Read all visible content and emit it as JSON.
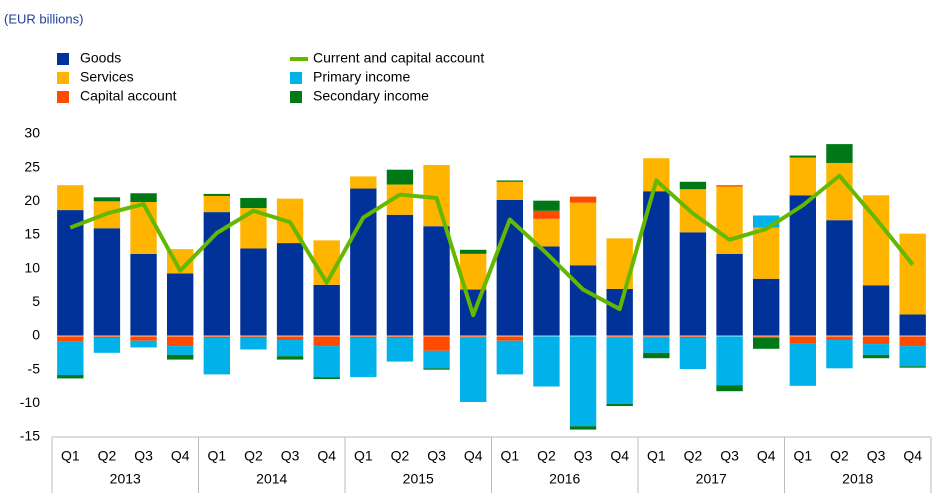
{
  "chart_data": {
    "type": "bar",
    "subtitle": "(EUR billions)",
    "categories": [
      "Q1",
      "Q2",
      "Q3",
      "Q4",
      "Q1",
      "Q2",
      "Q3",
      "Q4",
      "Q1",
      "Q2",
      "Q3",
      "Q4",
      "Q1",
      "Q2",
      "Q3",
      "Q4",
      "Q1",
      "Q2",
      "Q3",
      "Q4",
      "Q1",
      "Q2",
      "Q3",
      "Q4"
    ],
    "groups": [
      "2013",
      "2014",
      "2015",
      "2016",
      "2017",
      "2018"
    ],
    "stacked": true,
    "series": [
      {
        "name": "Goods",
        "color": "#003299",
        "values": [
          18.7,
          16,
          12.2,
          9.3,
          18.4,
          13,
          13.8,
          7.6,
          21.9,
          18,
          16.3,
          6.9,
          20.2,
          13.3,
          10.5,
          7,
          21.5,
          15.4,
          12.2,
          8.5,
          20.9,
          17.2,
          7.5,
          3.2
        ]
      },
      {
        "name": "Services",
        "color": "#ffb400",
        "values": [
          3.7,
          4,
          7.7,
          3.6,
          2.4,
          6,
          6.6,
          6.6,
          1.8,
          4.5,
          9.1,
          5.3,
          2.7,
          4.1,
          9.3,
          7.5,
          4.9,
          6.4,
          10,
          7.6,
          5.6,
          8.5,
          13.4,
          12
        ]
      },
      {
        "name": "Capital account",
        "color": "#ff4b00",
        "values": [
          -0.8,
          -0.3,
          -0.7,
          -1.5,
          -0.3,
          -0.3,
          -0.6,
          -1.5,
          -0.3,
          -0.3,
          -2.2,
          -0.2,
          -0.7,
          1.2,
          0.9,
          -0.2,
          -0.2,
          -0.3,
          0.2,
          -0.3,
          -1.1,
          -0.6,
          -1.2,
          -1.5
        ]
      },
      {
        "name": "Primary income",
        "color": "#00b1ea",
        "values": [
          -5,
          -2.2,
          -1,
          -1.3,
          -5.4,
          -1.7,
          -2.4,
          -4.6,
          -5.8,
          -3.5,
          -2.6,
          -9.6,
          -5,
          -7.5,
          -13.4,
          -9.9,
          -2.3,
          -4.6,
          -7.3,
          1.8,
          -6.3,
          -4.2,
          -1.6,
          -3
        ]
      },
      {
        "name": "Secondary income",
        "color": "#007816",
        "values": [
          -0.5,
          0.6,
          1.3,
          -0.7,
          0.3,
          1.5,
          -0.5,
          -0.3,
          0,
          2.2,
          -0.2,
          0.6,
          0.2,
          1.5,
          -0.5,
          -0.3,
          -0.8,
          1.1,
          -0.9,
          -1.6,
          0.3,
          2.8,
          -0.5,
          -0.2
        ]
      }
    ],
    "line_series": {
      "name": "Current and capital account",
      "color": "#65b800",
      "values": [
        16.1,
        18.2,
        19.6,
        9.7,
        15.3,
        18.6,
        16.9,
        7.9,
        17.6,
        21,
        20.5,
        3.1,
        17.3,
        12.3,
        6.9,
        4,
        23.1,
        18.2,
        14.3,
        15.9,
        19.4,
        23.8,
        17.4,
        10.6
      ]
    },
    "ylim": [
      -15,
      30
    ],
    "yticks": [
      30,
      25,
      20,
      15,
      10,
      5,
      0,
      -5,
      -10,
      -15
    ],
    "grid": false
  }
}
